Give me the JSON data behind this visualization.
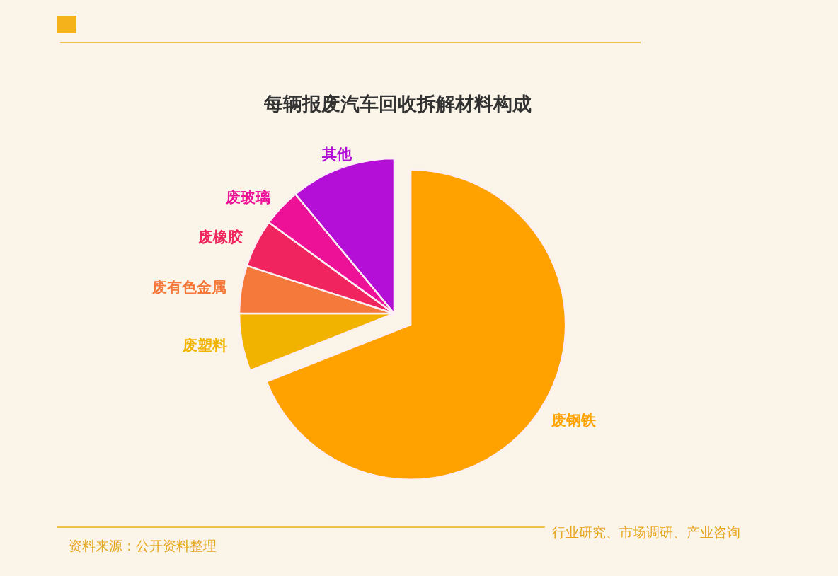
{
  "chart_data": {
    "type": "pie",
    "title": "每辆报废汽车回收拆解材料构成",
    "categories": [
      "废钢铁",
      "废塑料",
      "废有色金属",
      "废橡胶",
      "废玻璃",
      "其他"
    ],
    "values": [
      69,
      6,
      5,
      5,
      4,
      11
    ],
    "colors": [
      "#ffa200",
      "#f2b300",
      "#f5793a",
      "#f0245e",
      "#ec1196",
      "#b30fd6"
    ],
    "annotations": [
      "资料来源：公开资料整理",
      "行业研究、市场调研、产业咨询"
    ]
  }
}
